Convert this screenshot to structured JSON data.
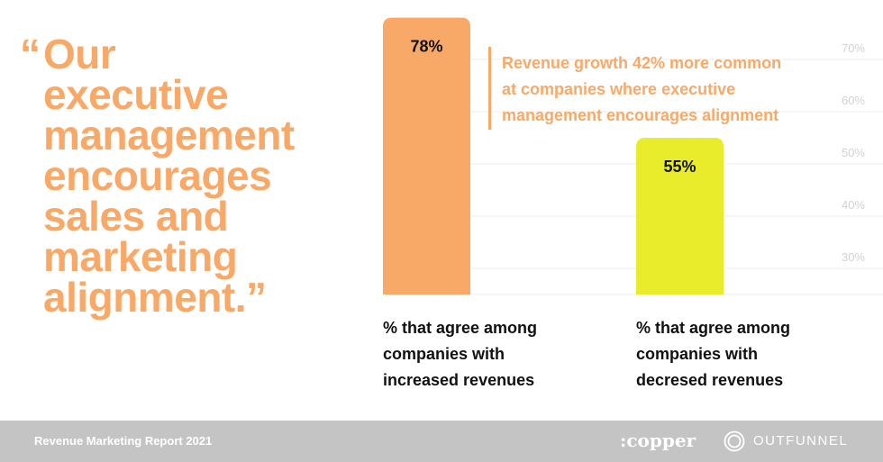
{
  "quote": {
    "open_mark": "“",
    "lines": [
      "Our",
      "executive",
      "management",
      "encourages",
      "sales and",
      "marketing",
      "alignment.”"
    ]
  },
  "callout": {
    "lines": [
      "Revenue growth 42% more common",
      "at companies where executive",
      "management encourages alignment"
    ]
  },
  "chart_data": {
    "type": "bar",
    "categories": [
      "% that agree among companies with increased revenues",
      "% that agree among companies with decresed revenues"
    ],
    "values": [
      78,
      55
    ],
    "value_labels": [
      "78%",
      "55%"
    ],
    "bar_colors": [
      "#F9A967",
      "#E8EC2A"
    ],
    "y_ticks": [
      70,
      60,
      50,
      40,
      30
    ],
    "y_tick_labels": [
      "70%",
      "60%",
      "50%",
      "40%",
      "30%"
    ],
    "ylim": [
      25,
      72
    ],
    "grid": true,
    "title": "",
    "xlabel": "",
    "ylabel": ""
  },
  "captions": [
    {
      "lines": [
        "% that agree among",
        "companies with",
        "increased revenues"
      ]
    },
    {
      "lines": [
        "% that agree among",
        "companies with",
        "decresed revenues"
      ]
    }
  ],
  "footer": {
    "report": "Revenue Marketing Report 2021",
    "copper": ":copper",
    "outfunnel": "OUTFUNNEL"
  },
  "colors": {
    "accent": "#F9A967",
    "highlight": "#E8EC2A",
    "footer_bg": "#C4C4C4"
  }
}
